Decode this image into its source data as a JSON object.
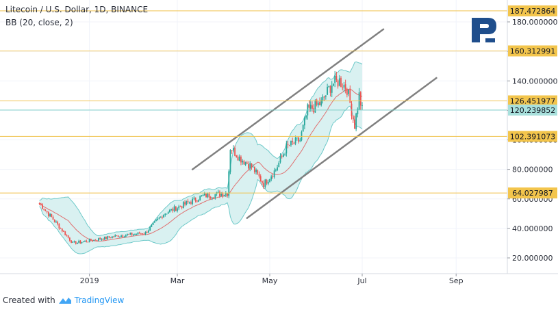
{
  "header": {
    "title": "Litecoin / U.S. Dollar, 1D, BINANCE",
    "indicator": "BB (20, close, 2)"
  },
  "footer": {
    "created_with": "Created with",
    "brand": "TradingView"
  },
  "colors": {
    "level_line": "#f0c24e",
    "level_label_bg": "#f3c54c",
    "current_label_bg": "#a8e0dc",
    "channel": "#808080",
    "bb_fill": "#cfeeee",
    "bb_line": "#6ec9c9",
    "bb_mid": "#e07070",
    "up": "#26a69a",
    "down": "#ef5350",
    "logo": "#1f4e8c"
  },
  "chart_data": {
    "type": "candlestick",
    "symbol": "LTCUSD",
    "title": "Litecoin / U.S. Dollar, 1D, BINANCE",
    "indicator": "BB (20, close, 2)",
    "y_axis": {
      "ylim": [
        5,
        195
      ],
      "ticks": [
        20,
        40,
        60,
        80,
        100,
        120,
        140,
        160,
        180
      ],
      "tick_labels": [
        "20.000000",
        "40.000000",
        "60.000000",
        "80.000000",
        "100.000000",
        "120.000000",
        "140.000000",
        "160.000000",
        "180.000000"
      ]
    },
    "x_axis": {
      "ticks": [
        {
          "label": "2019",
          "day": 33
        },
        {
          "label": "Mar",
          "day": 91
        },
        {
          "label": "May",
          "day": 152
        },
        {
          "label": "Jul",
          "day": 213
        },
        {
          "label": "Sep",
          "day": 275
        }
      ],
      "start_day": 0,
      "end_day": 305
    },
    "levels": [
      {
        "value": 187.472864,
        "label": "187.472864",
        "type": "resistance"
      },
      {
        "value": 160.312991,
        "label": "160.312991",
        "type": "resistance"
      },
      {
        "value": 126.451977,
        "label": "126.451977",
        "type": "resistance"
      },
      {
        "value": 120.239852,
        "label": "120.239852",
        "type": "current"
      },
      {
        "value": 102.391073,
        "label": "102.391073",
        "type": "support"
      },
      {
        "value": 64.027987,
        "label": "64.027987",
        "type": "support"
      }
    ],
    "channel": {
      "upper": [
        {
          "day": 101,
          "value": 80
        },
        {
          "day": 227,
          "value": 175
        }
      ],
      "lower": [
        {
          "day": 137,
          "value": 47
        },
        {
          "day": 262,
          "value": 142
        }
      ]
    },
    "anchors": [
      {
        "day": 0,
        "value": 57
      },
      {
        "day": 10,
        "value": 45
      },
      {
        "day": 22,
        "value": 30
      },
      {
        "day": 35,
        "value": 32
      },
      {
        "day": 52,
        "value": 35
      },
      {
        "day": 70,
        "value": 37
      },
      {
        "day": 82,
        "value": 50
      },
      {
        "day": 95,
        "value": 56
      },
      {
        "day": 108,
        "value": 62
      },
      {
        "day": 124,
        "value": 64
      },
      {
        "day": 126,
        "value": 95
      },
      {
        "day": 132,
        "value": 88
      },
      {
        "day": 140,
        "value": 82
      },
      {
        "day": 148,
        "value": 70
      },
      {
        "day": 156,
        "value": 80
      },
      {
        "day": 163,
        "value": 95
      },
      {
        "day": 172,
        "value": 100
      },
      {
        "day": 177,
        "value": 120
      },
      {
        "day": 186,
        "value": 125
      },
      {
        "day": 193,
        "value": 138
      },
      {
        "day": 198,
        "value": 140
      },
      {
        "day": 203,
        "value": 135
      },
      {
        "day": 208,
        "value": 110
      },
      {
        "day": 211,
        "value": 130
      },
      {
        "day": 213,
        "value": 120
      }
    ]
  }
}
